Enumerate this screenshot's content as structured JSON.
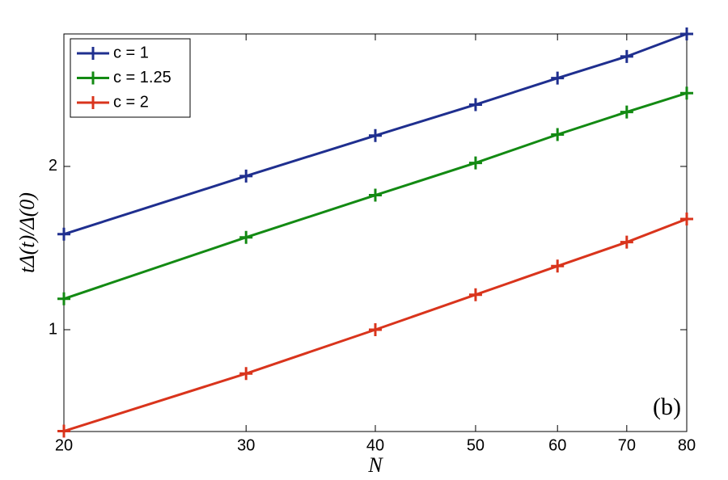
{
  "chart_data": {
    "type": "line",
    "x_label": "N",
    "y_label": "tΔ(t)/Δ(0)",
    "annotation": "(b)",
    "x": [
      20,
      30,
      40,
      50,
      60,
      70,
      80
    ],
    "series": [
      {
        "name": "c = 1",
        "color": "#1f2f8f",
        "values": [
          1.5,
          1.92,
          2.28,
          2.6,
          2.91,
          3.19,
          3.51
        ]
      },
      {
        "name": "c = 1.25",
        "color": "#138a13",
        "values": [
          1.14,
          1.48,
          1.77,
          2.03,
          2.29,
          2.52,
          2.73
        ]
      },
      {
        "name": "c = 2",
        "color": "#d9341c",
        "values": [
          0.65,
          0.83,
          1.0,
          1.16,
          1.31,
          1.45,
          1.6
        ]
      }
    ],
    "xlim": [
      20,
      80
    ],
    "xticks": [
      20,
      30,
      40,
      50,
      60,
      70,
      80
    ],
    "ylim": [
      0.649,
      3.51
    ],
    "yticks": [
      1,
      2
    ],
    "xscale": "log",
    "yscale": "log",
    "legend": "upper left",
    "grid": false
  }
}
